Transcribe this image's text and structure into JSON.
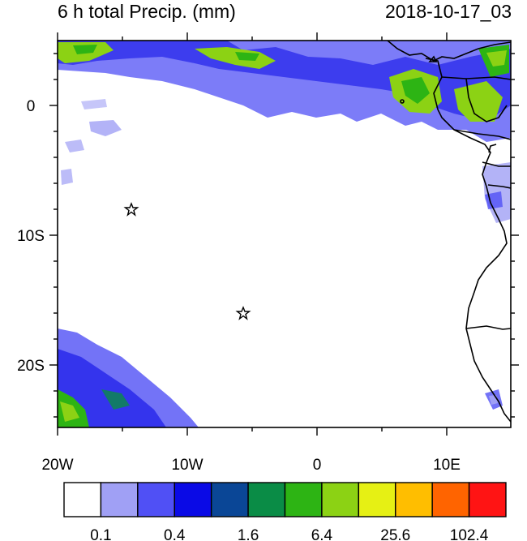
{
  "header": {
    "title": "6 h total Precip. (mm)",
    "timestamp": "2018-10-17_03"
  },
  "map": {
    "x_tick_labels": [
      "20W",
      "10W",
      "0",
      "10E"
    ],
    "y_tick_labels": [
      "0",
      "10S",
      "20S"
    ],
    "markers": [
      {
        "name": "star-marker-1",
        "lon": -14.3,
        "lat": -8.0
      },
      {
        "name": "star-marker-2",
        "lon": -5.8,
        "lat": -16.0
      }
    ]
  },
  "colorbar": {
    "colors": [
      "#ffffff",
      "#a0a0f5",
      "#5050f5",
      "#0a0ae6",
      "#0a4696",
      "#0a8c46",
      "#2db414",
      "#8cd214",
      "#e6f014",
      "#ffbe00",
      "#ff6400",
      "#ff1414"
    ],
    "labels": [
      "0.1",
      "0.4",
      "1.6",
      "6.4",
      "25.6",
      "102.4"
    ]
  }
}
